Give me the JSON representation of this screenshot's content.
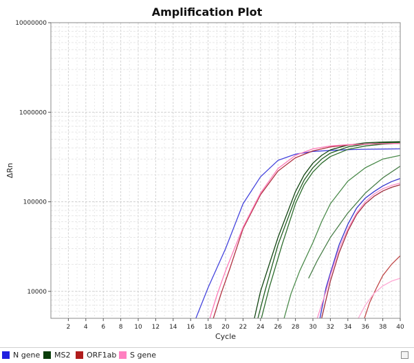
{
  "chart_data": {
    "type": "line",
    "title": "Amplification Plot",
    "xlabel": "Cycle",
    "ylabel": "ΔRn",
    "xlim": [
      0,
      40
    ],
    "ylim": [
      5000,
      10000000
    ],
    "yscale": "log",
    "grid": true,
    "x_ticks": [
      2,
      4,
      6,
      8,
      10,
      12,
      14,
      16,
      18,
      20,
      22,
      24,
      26,
      28,
      30,
      32,
      34,
      36,
      38,
      40
    ],
    "y_ticks": [
      10000,
      100000,
      1000000,
      10000000
    ],
    "y_tick_labels": [
      "10000",
      "100000",
      "1000000",
      "10000000"
    ],
    "legend_position": "bottom-left",
    "legend": [
      {
        "label": "N  gene",
        "color": "#1f1fe0"
      },
      {
        "label": "MS2",
        "color": "#0a3d0a"
      },
      {
        "label": "ORF1ab",
        "color": "#b01c1c"
      },
      {
        "label": "S gene",
        "color": "#ff80c0"
      }
    ],
    "series": [
      {
        "group": "N  gene",
        "color": "#4444dd",
        "x": [
          16.6,
          18,
          20,
          22,
          24,
          26,
          28,
          30,
          32,
          34,
          36,
          38,
          40
        ],
        "y": [
          5000,
          11000,
          30000,
          95000,
          190000,
          290000,
          340000,
          365000,
          375000,
          382000,
          386000,
          388000,
          390000
        ]
      },
      {
        "group": "N  gene",
        "color": "#3333cc",
        "x": [
          30.8,
          31.5,
          32,
          33,
          34,
          35,
          36,
          37,
          38,
          39,
          40
        ],
        "y": [
          5000,
          11000,
          16000,
          33000,
          56000,
          85000,
          110000,
          130000,
          150000,
          168000,
          182000
        ]
      },
      {
        "group": "MS2",
        "color": "#114411",
        "x": [
          23.3,
          24,
          26,
          28,
          29,
          30,
          31,
          32,
          34,
          36,
          38,
          40
        ],
        "y": [
          5000,
          10000,
          40000,
          130000,
          200000,
          270000,
          330000,
          380000,
          430000,
          455000,
          465000,
          470000
        ]
      },
      {
        "group": "MS2",
        "color": "#1f5c1f",
        "x": [
          23.7,
          24.5,
          26,
          28,
          29,
          30,
          31,
          32,
          34,
          36,
          38,
          40
        ],
        "y": [
          5000,
          10000,
          33000,
          110000,
          175000,
          240000,
          300000,
          350000,
          410000,
          440000,
          455000,
          460000
        ]
      },
      {
        "group": "MS2",
        "color": "#2b6b2b",
        "x": [
          24.1,
          25,
          26.5,
          28,
          29,
          30,
          31,
          32,
          34,
          36,
          38,
          40
        ],
        "y": [
          5000,
          11000,
          34000,
          95000,
          155000,
          215000,
          270000,
          320000,
          385000,
          420000,
          440000,
          450000
        ]
      },
      {
        "group": "MS2",
        "color": "#4a8a4a",
        "x": [
          26.7,
          27.5,
          28.5,
          30,
          31,
          32,
          34,
          36,
          38,
          40
        ],
        "y": [
          5000,
          9500,
          17000,
          35000,
          60000,
          95000,
          170000,
          240000,
          300000,
          330000
        ]
      },
      {
        "group": "MS2",
        "color": "#4a7f4a",
        "x": [
          29.5,
          30.5,
          32,
          34,
          36,
          38,
          40
        ],
        "y": [
          14000,
          22000,
          40000,
          75000,
          125000,
          185000,
          250000
        ]
      },
      {
        "group": "ORF1ab",
        "color": "#b03040",
        "x": [
          18.6,
          19.5,
          20.5,
          22,
          24,
          26,
          28,
          30,
          32,
          34,
          36,
          38,
          40
        ],
        "y": [
          5000,
          9500,
          18000,
          50000,
          120000,
          220000,
          310000,
          370000,
          410000,
          430000,
          440000,
          445000,
          448000
        ]
      },
      {
        "group": "ORF1ab",
        "color": "#a02a3a",
        "x": [
          31.0,
          32,
          33,
          34,
          35,
          36,
          37,
          38,
          39,
          40
        ],
        "y": [
          5000,
          13000,
          27000,
          47000,
          72000,
          95000,
          115000,
          132000,
          145000,
          155000
        ]
      },
      {
        "group": "ORF1ab",
        "color": "#c04848",
        "x": [
          35.9,
          36.5,
          37.3,
          38,
          39,
          40
        ],
        "y": [
          5000,
          7500,
          11000,
          15000,
          20000,
          25000
        ]
      },
      {
        "group": "S gene",
        "color": "#ff7ab8",
        "x": [
          18.2,
          19,
          20,
          22,
          24,
          26,
          28,
          30,
          32,
          34,
          36,
          38,
          40
        ],
        "y": [
          5000,
          9000,
          17000,
          52000,
          125000,
          235000,
          330000,
          390000,
          420000,
          435000,
          442000,
          446000,
          448000
        ]
      },
      {
        "group": "S gene",
        "color": "#ff8ec8",
        "x": [
          30.5,
          31.5,
          32,
          33,
          34,
          35,
          36,
          37,
          38,
          39,
          40
        ],
        "y": [
          5000,
          10000,
          15000,
          30000,
          50000,
          75000,
          100000,
          122000,
          140000,
          152000,
          162000
        ]
      },
      {
        "group": "S gene",
        "color": "#ffa8d4",
        "x": [
          35.2,
          36,
          37,
          38,
          39,
          40
        ],
        "y": [
          5000,
          7000,
          9500,
          11500,
          13000,
          14000
        ]
      }
    ]
  }
}
